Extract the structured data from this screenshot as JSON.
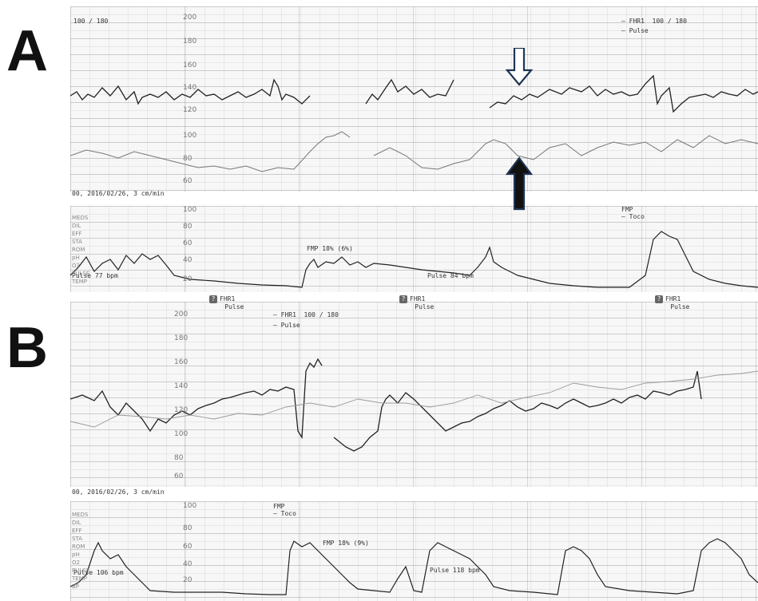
{
  "panels": [
    {
      "letter": "A",
      "header_left": "100 / 180",
      "legend": {
        "fhr": "FHR1",
        "scale": "100 / 180",
        "pulse": "Pulse"
      },
      "date": "00, 2016/02/26, 3 cm/min",
      "fmp": "FMP 18% (6%)",
      "pulse_left": "Pulse 77 bpm",
      "pulse_right": "Pulse 84 bpm",
      "toco_legend": {
        "fmp": "FMP",
        "toco": "Toco"
      },
      "markers": [
        {
          "label": "FHR1",
          "sub": "Pulse"
        },
        {
          "label": "FHR1",
          "sub": "Pulse"
        },
        {
          "label": "FHR1",
          "sub": "Pulse"
        }
      ]
    },
    {
      "letter": "B",
      "legend": {
        "fhr": "FHR1",
        "scale": "100 / 180",
        "pulse": "Pulse"
      },
      "date": "00, 2016/02/26, 3 cm/min",
      "fmp": "FMP 18% (9%)",
      "toco_legend": {
        "fmp": "FMP",
        "toco": "Toco"
      },
      "pulse_left": "Pulse 106 bpm",
      "pulse_right": "Pulse 118 bpm"
    }
  ],
  "ticks": {
    "fhr_a": [
      "200",
      "180",
      "160",
      "140",
      "120"
    ],
    "pulse_a": [
      "100",
      "80",
      "60"
    ],
    "toco": [
      "100",
      "80",
      "60",
      "40",
      "20"
    ],
    "fhr_b": [
      "200",
      "180",
      "160",
      "140",
      "120",
      "100",
      "80",
      "60"
    ]
  },
  "side_labels": [
    "MEDS",
    "DIL",
    "EFF",
    "STA",
    "ROM",
    "pH",
    "O2",
    "PULSE",
    "TEMP",
    "BP"
  ]
}
